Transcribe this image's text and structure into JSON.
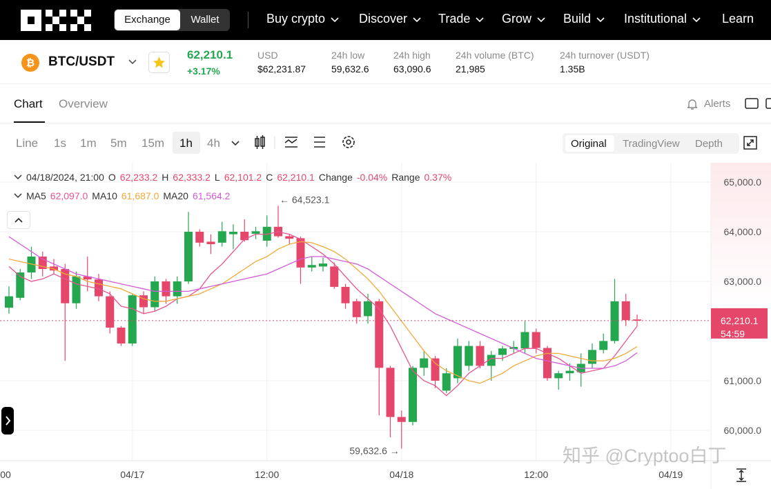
{
  "header": {
    "toggle": [
      "Exchange",
      "Wallet"
    ],
    "nav": [
      "Buy crypto",
      "Discover",
      "Trade",
      "Grow",
      "Build",
      "Institutional",
      "Learn"
    ]
  },
  "ticker": {
    "pair": "BTC/USDT",
    "price": "62,210.1",
    "change": "+3.17%",
    "stats": [
      {
        "label": "USD",
        "value": "$62,231.87"
      },
      {
        "label": "24h low",
        "value": "59,632.6"
      },
      {
        "label": "24h high",
        "value": "63,090.6"
      },
      {
        "label": "24h volume (BTC)",
        "value": "21,985"
      },
      {
        "label": "24h turnover (USDT)",
        "value": "1.35B"
      }
    ]
  },
  "tabs": [
    "Chart",
    "Overview"
  ],
  "alerts": "Alerts",
  "toolbar": {
    "intervals": [
      "Line",
      "1s",
      "1m",
      "5m",
      "15m",
      "1h",
      "4h"
    ],
    "views": [
      "Original",
      "TradingView",
      "Depth"
    ]
  },
  "ohlc_bar": {
    "time": "04/18/2024, 21:00",
    "fields": [
      {
        "label": "O",
        "value": "62,233.2"
      },
      {
        "label": "H",
        "value": "62,333.2"
      },
      {
        "label": "L",
        "value": "62,101.2"
      },
      {
        "label": "C",
        "value": "62,210.1"
      },
      {
        "label": "Change",
        "value": "-0.04%"
      },
      {
        "label": "Range",
        "value": "0.37%"
      }
    ]
  },
  "chart_data": {
    "type": "candlestick",
    "up_color": "#25a750",
    "down_color": "#e5476b",
    "x": [
      "04/16 13:00",
      "04/16 14:00",
      "04/16 15:00",
      "04/16 16:00",
      "04/16 17:00",
      "04/16 18:00",
      "04/16 19:00",
      "04/16 20:00",
      "04/16 21:00",
      "04/16 22:00",
      "04/16 23:00",
      "04/17 00:00",
      "04/17 01:00",
      "04/17 02:00",
      "04/17 03:00",
      "04/17 04:00",
      "04/17 05:00",
      "04/17 06:00",
      "04/17 07:00",
      "04/17 08:00",
      "04/17 09:00",
      "04/17 10:00",
      "04/17 11:00",
      "04/17 12:00",
      "04/17 13:00",
      "04/17 14:00",
      "04/17 15:00",
      "04/17 16:00",
      "04/17 17:00",
      "04/17 18:00",
      "04/17 19:00",
      "04/17 20:00",
      "04/17 21:00",
      "04/17 22:00",
      "04/17 23:00",
      "04/18 00:00",
      "04/18 01:00",
      "04/18 02:00",
      "04/18 03:00",
      "04/18 04:00",
      "04/18 05:00",
      "04/18 06:00",
      "04/18 07:00",
      "04/18 08:00",
      "04/18 09:00",
      "04/18 10:00",
      "04/18 11:00",
      "04/18 12:00",
      "04/18 13:00",
      "04/18 14:00",
      "04/18 15:00",
      "04/18 16:00",
      "04/18 17:00",
      "04/18 18:00",
      "04/18 19:00",
      "04/18 20:00",
      "04/18 21:00"
    ],
    "open": [
      62470,
      62670,
      63180,
      63500,
      63300,
      63250,
      62560,
      63100,
      63040,
      62700,
      62070,
      61750,
      62720,
      62480,
      63000,
      62700,
      63000,
      64000,
      63800,
      63780,
      63950,
      64000,
      63960,
      63820,
      64100,
      63910,
      63870,
      63280,
      63300,
      63300,
      62890,
      62600,
      62300,
      62600,
      61260,
      60270,
      60170,
      61260,
      61450,
      60800,
      61050,
      61300,
      61700,
      61300,
      61520,
      61640,
      61650,
      61980,
      61660,
      61050,
      61150,
      61170,
      61340,
      61620,
      61800,
      62600,
      62233.2
    ],
    "high": [
      62900,
      63250,
      63700,
      63600,
      63450,
      63350,
      63200,
      63500,
      63150,
      62800,
      62100,
      62750,
      62800,
      63100,
      63050,
      63100,
      64400,
      64050,
      63950,
      64200,
      64150,
      64250,
      64100,
      64330,
      64523.1,
      63950,
      63900,
      63500,
      63480,
      63380,
      62950,
      62650,
      62750,
      62650,
      61300,
      60400,
      61300,
      61600,
      61500,
      61250,
      61850,
      61800,
      61800,
      61600,
      61700,
      61800,
      62200,
      62050,
      61700,
      61200,
      61350,
      61550,
      61750,
      61950,
      63050,
      62750,
      62333.2
    ],
    "low": [
      62350,
      62620,
      63050,
      63100,
      63150,
      61400,
      62450,
      62800,
      62600,
      61950,
      61700,
      61700,
      62350,
      62400,
      62550,
      62550,
      62950,
      63700,
      63550,
      63700,
      63650,
      63800,
      63850,
      63700,
      63880,
      63750,
      62950,
      63200,
      63200,
      62850,
      62450,
      62150,
      62150,
      60300,
      59860,
      59632.6,
      60100,
      61100,
      60850,
      60750,
      60950,
      61200,
      61250,
      61000,
      61400,
      61550,
      61550,
      61550,
      61000,
      60820,
      61000,
      60880,
      61250,
      61550,
      61750,
      62100,
      62101.2
    ],
    "close": [
      62700,
      63180,
      63500,
      63250,
      63220,
      62560,
      63100,
      63040,
      62700,
      62070,
      61750,
      62720,
      62480,
      63000,
      62700,
      63000,
      64000,
      63780,
      63750,
      64010,
      64000,
      63830,
      64010,
      64100,
      63910,
      63860,
      63280,
      63330,
      63360,
      62890,
      62560,
      62280,
      62600,
      61260,
      60270,
      60170,
      61260,
      61450,
      61000,
      61150,
      61700,
      61700,
      61300,
      61520,
      61650,
      61680,
      61980,
      61660,
      61050,
      61150,
      61200,
      61340,
      61620,
      61800,
      62600,
      62220,
      62210.1
    ],
    "series": [
      {
        "name": "MA5",
        "legend_value": "62,097.0",
        "color": "#e8538f",
        "values": [
          63300,
          63100,
          63000,
          63050,
          63150,
          63050,
          62950,
          62900,
          62850,
          62750,
          62500,
          62450,
          62350,
          62400,
          62500,
          62650,
          62700,
          62850,
          63150,
          63350,
          63600,
          63850,
          63950,
          63950,
          64000,
          63950,
          63850,
          63700,
          63550,
          63350,
          63100,
          62850,
          62650,
          62450,
          62100,
          61650,
          61200,
          61000,
          60900,
          60700,
          60900,
          61150,
          61300,
          61450,
          61450,
          61550,
          61650,
          61650,
          61550,
          61450,
          61300,
          61150,
          61200,
          61250,
          61500,
          61800,
          62097.0
        ]
      },
      {
        "name": "MA10",
        "legend_value": "61,687.0",
        "color": "#f0a93b",
        "values": [
          63450,
          63400,
          63350,
          63300,
          63250,
          63150,
          63100,
          63000,
          62950,
          62900,
          62850,
          62750,
          62650,
          62600,
          62600,
          62650,
          62700,
          62750,
          62850,
          62950,
          63100,
          63250,
          63400,
          63500,
          63650,
          63750,
          63800,
          63780,
          63700,
          63600,
          63450,
          63250,
          63050,
          62800,
          62500,
          62200,
          61900,
          61600,
          61350,
          61200,
          61100,
          61000,
          60950,
          61050,
          61150,
          61300,
          61400,
          61500,
          61550,
          61550,
          61500,
          61450,
          61400,
          61400,
          61450,
          61550,
          61687.0
        ]
      },
      {
        "name": "MA20",
        "legend_value": "61,564.2",
        "color": "#d35bd6",
        "values": [
          63900,
          63750,
          63600,
          63450,
          63350,
          63250,
          63150,
          63100,
          63050,
          63000,
          62950,
          62900,
          62850,
          62800,
          62800,
          62800,
          62800,
          62850,
          62900,
          62950,
          63000,
          63050,
          63100,
          63150,
          63250,
          63350,
          63450,
          63500,
          63500,
          63450,
          63400,
          63350,
          63250,
          63100,
          62950,
          62800,
          62650,
          62500,
          62350,
          62250,
          62150,
          62050,
          61950,
          61850,
          61750,
          61650,
          61550,
          61450,
          61400,
          61350,
          61300,
          61250,
          61250,
          61250,
          61300,
          61400,
          61564.2
        ]
      }
    ],
    "ylim": [
      59389,
      65389
    ],
    "yticks": [
      {
        "value": 60000,
        "label": "60,000.0"
      },
      {
        "value": 61000,
        "label": "61,000.0"
      },
      {
        "value": 63000,
        "label": "63,000.0"
      },
      {
        "value": 64000,
        "label": "64,000.0"
      },
      {
        "value": 65000,
        "label": "65,000.0"
      }
    ],
    "xticks": [
      {
        "value": "04/16 12:00",
        "label": "00"
      },
      {
        "value": "04/17 00:00",
        "label": "04/17"
      },
      {
        "value": "04/17 12:00",
        "label": "12:00"
      },
      {
        "value": "04/18 00:00",
        "label": "04/18"
      },
      {
        "value": "04/18 12:00",
        "label": "12:00"
      },
      {
        "value": "04/19 00:00",
        "label": "04/19"
      }
    ],
    "grid": true,
    "last_price": {
      "value": 62210.1,
      "label": "62,210.1"
    },
    "countdown": "54:59",
    "annotations": [
      {
        "x": "04/17 13:00",
        "value": 64523.1,
        "label": "← 64,523.1",
        "side": "right"
      },
      {
        "x": "04/18 00:00",
        "value": 59632.6,
        "label": "59,632.6 →",
        "side": "left"
      }
    ]
  },
  "watermark": "知乎 @Cryptoo白丁"
}
